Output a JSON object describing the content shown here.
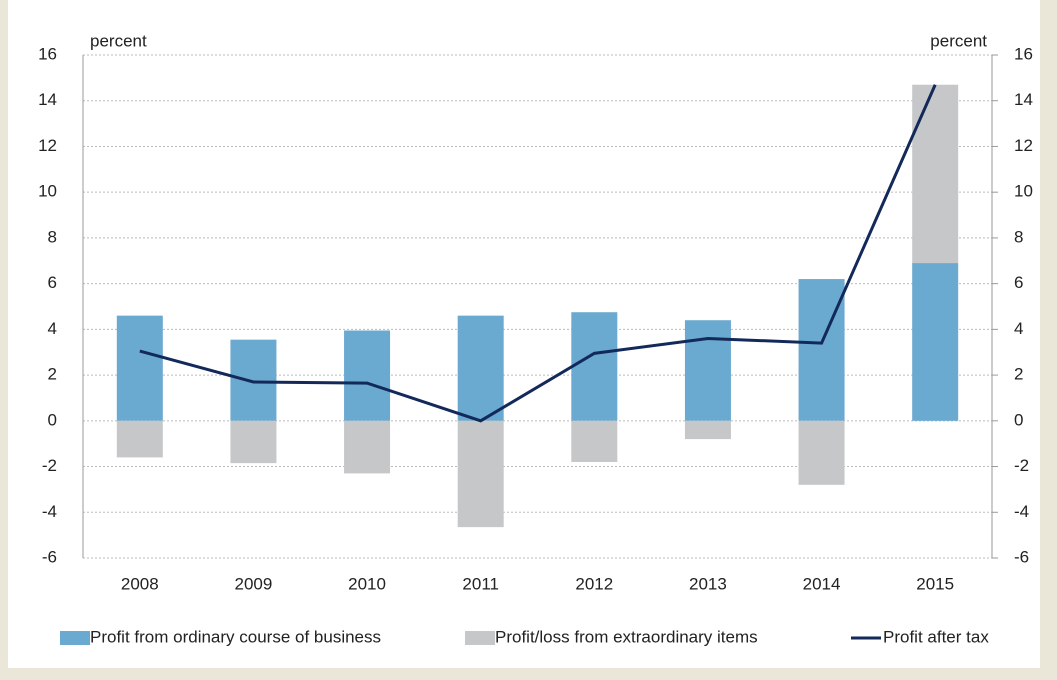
{
  "chart_data": {
    "type": "bar_line",
    "y_label": "percent",
    "y2_label": "percent",
    "categories": [
      "2008",
      "2009",
      "2010",
      "2011",
      "2012",
      "2013",
      "2014",
      "2015"
    ],
    "series": [
      {
        "name": "Profit from ordinary course of business",
        "type": "bar",
        "color": "#6aa9d0",
        "values": [
          4.6,
          3.55,
          3.95,
          4.6,
          4.75,
          4.4,
          6.2,
          6.9
        ]
      },
      {
        "name": "Profit/loss from extraordinary items",
        "type": "bar",
        "color": "#c6c7c9",
        "values": [
          -1.6,
          -1.85,
          -2.3,
          -4.65,
          -1.8,
          -0.8,
          -2.8,
          7.8
        ]
      },
      {
        "name": "Profit after tax",
        "type": "line",
        "axis": "y2",
        "color": "#13295a",
        "values": [
          3.05,
          1.7,
          1.65,
          0,
          2.95,
          3.6,
          3.4,
          14.7
        ]
      }
    ],
    "ylim": [
      -6,
      16
    ],
    "yticks": [
      -6,
      -4,
      -2,
      0,
      2,
      4,
      6,
      8,
      10,
      12,
      14,
      16
    ],
    "y2lim": [
      -6,
      16
    ],
    "y2ticks": [
      -6,
      -4,
      -2,
      0,
      2,
      4,
      6,
      8,
      10,
      12,
      14,
      16
    ],
    "grid": true,
    "legend": "bottom"
  }
}
